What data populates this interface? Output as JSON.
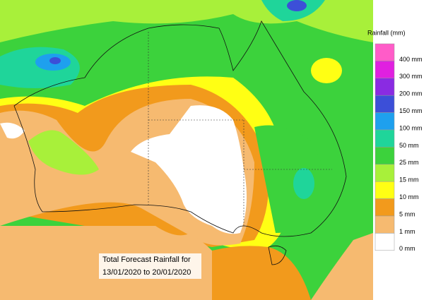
{
  "legend": {
    "title": "Rainfall (mm)",
    "items": [
      {
        "label": "400 mm",
        "color": "#ff5cc8"
      },
      {
        "label": "300 mm",
        "color": "#e020e0"
      },
      {
        "label": "200 mm",
        "color": "#8a2be2"
      },
      {
        "label": "150 mm",
        "color": "#3c4fd8"
      },
      {
        "label": "100 mm",
        "color": "#1ea0ee"
      },
      {
        "label": "50 mm",
        "color": "#1fd59a"
      },
      {
        "label": "25 mm",
        "color": "#3cd23c"
      },
      {
        "label": "15 mm",
        "color": "#a8f03a"
      },
      {
        "label": "10 mm",
        "color": "#ffff14"
      },
      {
        "label": "5 mm",
        "color": "#f29a1c"
      },
      {
        "label": "1 mm",
        "color": "#f6ba70"
      },
      {
        "label": "0 mm",
        "color": "#ffffff"
      }
    ]
  },
  "annotation": {
    "line1": "Total Forecast Rainfall for",
    "line2": "13/01/2020 to 20/01/2020"
  }
}
